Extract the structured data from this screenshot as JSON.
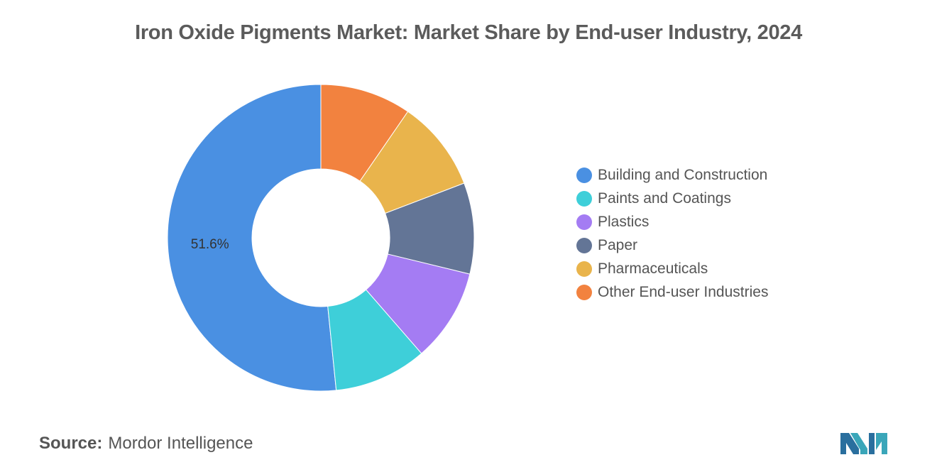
{
  "title": "Iron Oxide Pigments Market: Market Share by End-user Industry, 2024",
  "source": {
    "prefix": "Source:",
    "name": "Mordor Intelligence"
  },
  "chart_data": {
    "type": "pie",
    "title": "Iron Oxide Pigments Market: Market Share by End-user Industry, 2024",
    "donut": true,
    "legend_position": "right",
    "categories": [
      "Building and Construction",
      "Paints and Coatings",
      "Plastics",
      "Paper",
      "Pharmaceuticals",
      "Other End-user Industries"
    ],
    "values": [
      51.6,
      9.8,
      9.8,
      9.6,
      9.6,
      9.6
    ],
    "colors": [
      "#4a90e2",
      "#3ecfd9",
      "#a47cf3",
      "#637596",
      "#e9b44c",
      "#f2823f"
    ],
    "data_labels": [
      {
        "category": "Building and Construction",
        "text": "51.6%"
      }
    ]
  }
}
